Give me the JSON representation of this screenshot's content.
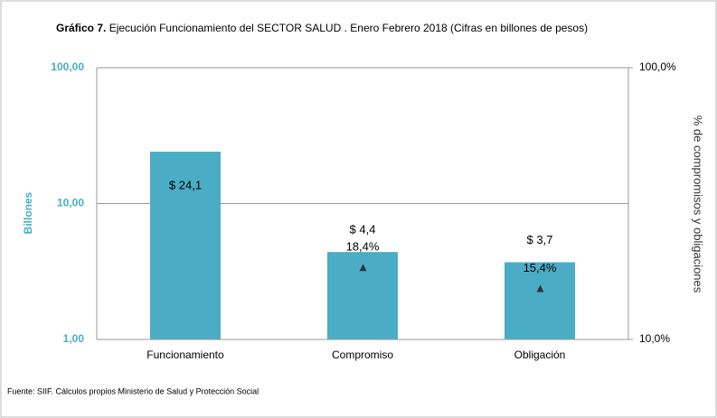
{
  "chart_data": {
    "type": "bar",
    "title_prefix": "Gráfico 7.",
    "title": "Ejecución Funcionamiento del SECTOR SALUD . Enero Febrero 2018   (Cifras en billones de pesos)",
    "categories": [
      "Funcionamiento",
      "Compromiso",
      "Obligación"
    ],
    "series": [
      {
        "type": "bar",
        "color": "#4bacc6",
        "values": [
          24.1,
          4.4,
          3.7
        ],
        "value_labels": [
          "$ 24,1",
          "$ 4,4",
          "$ 3,7"
        ]
      },
      {
        "type": "scatter",
        "marker": "triangle",
        "axis": "y2",
        "color": "#333333",
        "values": [
          null,
          18.4,
          15.4
        ],
        "value_labels": [
          null,
          "18,4%",
          "15,4%"
        ]
      }
    ],
    "ylabel": "Billones",
    "y2label": "% de compromisos y obligaciones",
    "ylim": [
      1,
      100
    ],
    "yscale": "log",
    "yticks": [
      {
        "value": 1,
        "label": "1,00"
      },
      {
        "value": 10,
        "label": "10,00"
      },
      {
        "value": 100,
        "label": "100,00"
      }
    ],
    "y2lim": [
      10,
      100
    ],
    "y2scale": "log",
    "y2ticks": [
      {
        "value": 10,
        "label": "10,0%"
      },
      {
        "value": 100,
        "label": "100,0%"
      }
    ],
    "grid": true,
    "note": "Fuente: SIIF. Cálculos propios Ministerio de Salud y Protección Social"
  }
}
